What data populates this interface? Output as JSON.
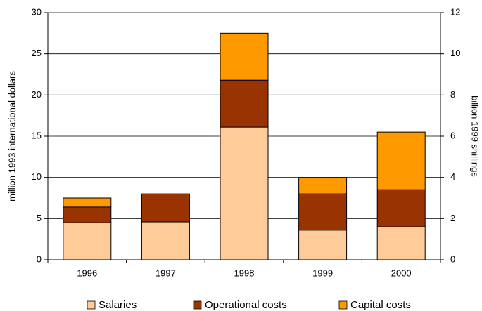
{
  "chart_data": {
    "type": "stacked_bar",
    "categories": [
      "1996",
      "1997",
      "1998",
      "1999",
      "2000"
    ],
    "series": [
      {
        "name": "Salaries",
        "color": "#FFCC99",
        "values": [
          4.5,
          4.6,
          16.1,
          3.6,
          4.0
        ]
      },
      {
        "name": "Operational costs",
        "color": "#993300",
        "values": [
          1.9,
          3.4,
          5.7,
          4.4,
          4.5
        ]
      },
      {
        "name": "Capital costs",
        "color": "#FF9900",
        "values": [
          1.1,
          0,
          5.7,
          2.0,
          7.0
        ]
      }
    ],
    "ylabel": "million 1993 international dollars",
    "y2label": "billion 1999 shillings",
    "ylim": [
      0,
      30
    ],
    "yticks": [
      0,
      5,
      10,
      15,
      20,
      25,
      30
    ],
    "y2lim": [
      0,
      12
    ],
    "y2ticks": [
      0,
      2,
      4,
      6,
      8,
      10,
      12
    ],
    "grid": true,
    "legend": "bottom"
  }
}
